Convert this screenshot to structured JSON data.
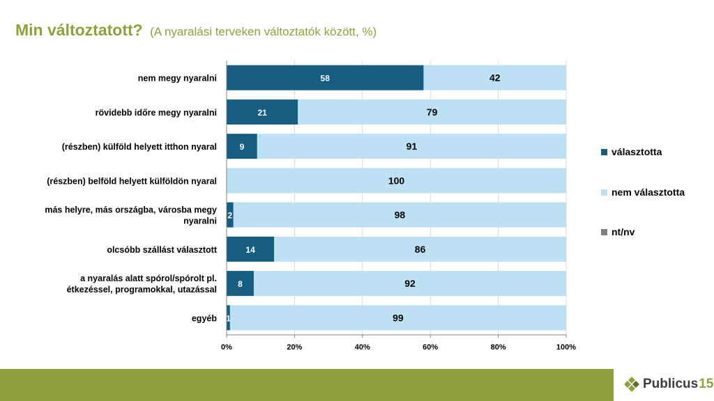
{
  "header": {
    "title": "Min változtatott?",
    "subtitle": "(A nyaralási terveken változtatók között, %)"
  },
  "colors": {
    "selected": "#155e82",
    "not_selected": "#bde1f3",
    "nt_nv": "#7f7f7f",
    "accent": "#8da23a"
  },
  "chart_data": {
    "type": "bar",
    "orientation": "horizontal",
    "stacked": true,
    "categories": [
      "nem megy nyaralni",
      "rövidebb időre megy nyaralni",
      "(részben) külföld helyett itthon nyaral",
      "(részben) belföld helyett külföldön nyaral",
      "más helyre, más országba, városba megy nyaralni",
      "olcsóbb szállást választott",
      "a nyaralás alatt spórol/spórolt pl. étkezéssel, programokkal, utazással",
      "egyéb"
    ],
    "series": [
      {
        "name": "választotta",
        "values": [
          58,
          21,
          9,
          0,
          2,
          14,
          8,
          1
        ]
      },
      {
        "name": "nem választotta",
        "values": [
          42,
          79,
          91,
          100,
          98,
          86,
          92,
          99
        ]
      },
      {
        "name": "nt/nv",
        "values": [
          0,
          0,
          0,
          0,
          0,
          0,
          0,
          0
        ]
      }
    ],
    "xlim": [
      0,
      100
    ],
    "xticks": [
      "0%",
      "20%",
      "40%",
      "60%",
      "80%",
      "100%"
    ],
    "legend_position": "right",
    "grid": true
  },
  "logo": {
    "name": "Publicus",
    "number": "15"
  }
}
